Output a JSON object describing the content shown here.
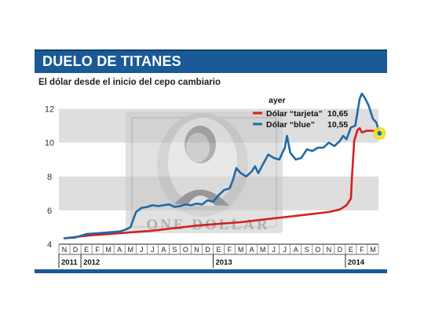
{
  "header": {
    "title": "DUELO DE TITANES"
  },
  "subtitle": "El dólar desde el inicio del cepo cambiario",
  "legend": {
    "heading": "ayer",
    "items": [
      {
        "label": "Dólar “tarjeta”",
        "value": "10,65",
        "color": "#d42020"
      },
      {
        "label": "Dólar “blue”",
        "value": "10,55",
        "color": "#1f6aa8"
      }
    ]
  },
  "chart_data": {
    "type": "line",
    "ylim": [
      4,
      13
    ],
    "y_ticks": [
      "4",
      "6",
      "8",
      "10",
      "12"
    ],
    "month_labels": [
      "N",
      "D",
      "E",
      "F",
      "M",
      "A",
      "M",
      "J",
      "J",
      "A",
      "S",
      "O",
      "N",
      "D",
      "E",
      "F",
      "M",
      "A",
      "M",
      "J",
      "J",
      "A",
      "S",
      "O",
      "N",
      "D",
      "E",
      "F",
      "M"
    ],
    "year_labels": [
      {
        "label": "2011",
        "start": 0
      },
      {
        "label": "2012",
        "start": 2
      },
      {
        "label": "2013",
        "start": 14
      },
      {
        "label": "2014",
        "start": 26
      }
    ],
    "series": [
      {
        "name": "Dólar “blue”",
        "color": "#1f6aa8",
        "x": [
          0,
          1,
          2,
          3,
          4,
          5,
          5.5,
          6,
          6.5,
          7,
          7.5,
          8,
          8.5,
          9,
          9.5,
          10,
          10.5,
          11,
          11.5,
          12,
          12.5,
          13,
          13.5,
          14,
          14.5,
          15,
          15.3,
          15.6,
          16,
          16.5,
          17,
          17.3,
          17.6,
          18,
          18.5,
          19,
          19.5,
          20,
          20.2,
          20.5,
          21,
          21.5,
          22,
          22.5,
          23,
          23.5,
          24,
          24.5,
          25,
          25.3,
          25.6,
          26,
          26.4,
          26.8,
          27,
          27.3,
          27.6,
          28,
          28.3,
          28.6
        ],
        "values": [
          4.35,
          4.4,
          4.6,
          4.65,
          4.7,
          4.75,
          4.85,
          5.0,
          5.9,
          6.15,
          6.2,
          6.3,
          6.25,
          6.3,
          6.35,
          6.2,
          6.25,
          6.35,
          6.3,
          6.4,
          6.35,
          6.6,
          6.5,
          6.9,
          7.2,
          7.3,
          7.8,
          8.5,
          8.2,
          8.0,
          8.3,
          8.6,
          8.2,
          8.7,
          9.3,
          9.1,
          9.0,
          9.7,
          10.4,
          9.4,
          9.0,
          9.1,
          9.6,
          9.5,
          9.7,
          9.7,
          10.0,
          9.8,
          10.1,
          10.4,
          10.2,
          10.9,
          11.0,
          12.6,
          12.9,
          12.6,
          12.2,
          11.4,
          11.2,
          10.55
        ]
      },
      {
        "name": "Dólar “tarjeta”",
        "color": "#d42020",
        "x": [
          0,
          2,
          4,
          6,
          8,
          10,
          12,
          14,
          16,
          18,
          20,
          22,
          24,
          25,
          25.6,
          26.0,
          26.1,
          26.3,
          26.6,
          26.8,
          27.0,
          27.4,
          28.0,
          28.6
        ],
        "values": [
          4.35,
          4.5,
          4.6,
          4.7,
          4.8,
          4.95,
          5.1,
          5.2,
          5.3,
          5.45,
          5.6,
          5.75,
          5.9,
          6.05,
          6.3,
          6.7,
          8.0,
          10.1,
          10.75,
          10.85,
          10.6,
          10.7,
          10.7,
          10.65
        ]
      }
    ]
  }
}
